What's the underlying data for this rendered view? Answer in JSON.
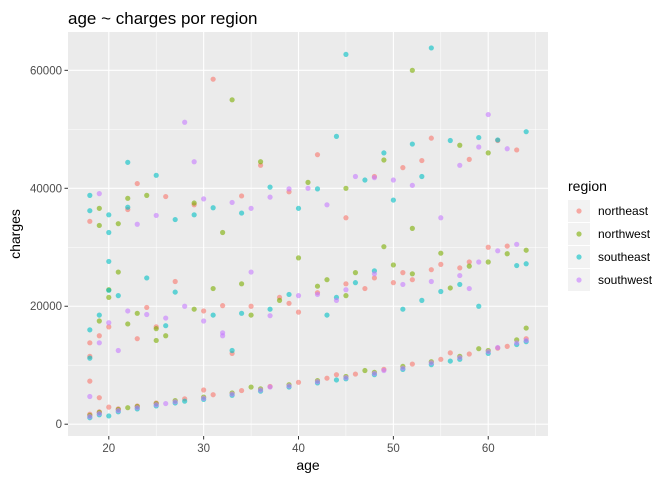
{
  "chart_data": {
    "type": "scatter",
    "title": "age ~ charges por region",
    "xlabel": "age",
    "ylabel": "charges",
    "xlim": [
      15.7,
      66.3
    ],
    "ylim": [
      -2000,
      66500
    ],
    "xticks": [
      20,
      30,
      40,
      50,
      60
    ],
    "yticks": [
      0,
      20000,
      40000,
      60000
    ],
    "grid": true,
    "legend": {
      "title": "region",
      "position": "right"
    },
    "point_alpha": 0.6,
    "series": [
      {
        "name": "northeast",
        "color": "#F8766D",
        "points": [
          [
            18,
            1700
          ],
          [
            19,
            2100
          ],
          [
            21,
            2600
          ],
          [
            23,
            3100
          ],
          [
            25,
            3600
          ],
          [
            28,
            4300
          ],
          [
            31,
            5000
          ],
          [
            34,
            5700
          ],
          [
            37,
            6400
          ],
          [
            40,
            7100
          ],
          [
            43,
            7800
          ],
          [
            46,
            8500
          ],
          [
            49,
            9300
          ],
          [
            52,
            10200
          ],
          [
            55,
            11000
          ],
          [
            58,
            11900
          ],
          [
            61,
            12900
          ],
          [
            64,
            14500
          ],
          [
            18,
            7300
          ],
          [
            19,
            4500
          ],
          [
            20,
            2900
          ],
          [
            30,
            5800
          ],
          [
            44,
            8400
          ],
          [
            56,
            12100
          ],
          [
            62,
            13200
          ],
          [
            18,
            11500
          ],
          [
            18,
            13800
          ],
          [
            20,
            16500
          ],
          [
            24,
            19800
          ],
          [
            27,
            24200
          ],
          [
            30,
            19200
          ],
          [
            32,
            20100
          ],
          [
            38,
            21500
          ],
          [
            42,
            22300
          ],
          [
            45,
            23800
          ],
          [
            48,
            24800
          ],
          [
            51,
            25700
          ],
          [
            55,
            27100
          ],
          [
            58,
            27500
          ],
          [
            60,
            30000
          ],
          [
            62,
            30200
          ],
          [
            23,
            14500
          ],
          [
            33,
            12000
          ],
          [
            39,
            20500
          ],
          [
            47,
            23000
          ],
          [
            52,
            24500
          ],
          [
            57,
            26500
          ],
          [
            18,
            34400
          ],
          [
            22,
            36400
          ],
          [
            23,
            40800
          ],
          [
            26,
            38600
          ],
          [
            29,
            37200
          ],
          [
            31,
            58500
          ],
          [
            34,
            38700
          ],
          [
            36,
            43900
          ],
          [
            39,
            39400
          ],
          [
            42,
            45700
          ],
          [
            45,
            35000
          ],
          [
            48,
            42000
          ],
          [
            51,
            43500
          ],
          [
            53,
            44700
          ],
          [
            54,
            48500
          ],
          [
            58,
            44900
          ],
          [
            61,
            48100
          ],
          [
            63,
            46500
          ],
          [
            19,
            15000
          ],
          [
            25,
            16500
          ],
          [
            35,
            20000
          ],
          [
            40,
            19000
          ],
          [
            50,
            24000
          ],
          [
            54,
            26200
          ]
        ]
      },
      {
        "name": "northwest",
        "color": "#7CAE00",
        "points": [
          [
            18,
            1500
          ],
          [
            19,
            2000
          ],
          [
            21,
            2500
          ],
          [
            23,
            3000
          ],
          [
            25,
            3500
          ],
          [
            27,
            4000
          ],
          [
            30,
            4600
          ],
          [
            33,
            5300
          ],
          [
            36,
            6000
          ],
          [
            39,
            6700
          ],
          [
            42,
            7400
          ],
          [
            45,
            8100
          ],
          [
            48,
            8800
          ],
          [
            51,
            9800
          ],
          [
            54,
            10600
          ],
          [
            57,
            11500
          ],
          [
            60,
            12500
          ],
          [
            63,
            14300
          ],
          [
            64,
            16300
          ],
          [
            22,
            2800
          ],
          [
            35,
            6300
          ],
          [
            47,
            9100
          ],
          [
            59,
            12800
          ],
          [
            19,
            17500
          ],
          [
            20,
            21500
          ],
          [
            20,
            22800
          ],
          [
            21,
            25800
          ],
          [
            22,
            17000
          ],
          [
            23,
            18800
          ],
          [
            25,
            16200
          ],
          [
            26,
            15000
          ],
          [
            29,
            19500
          ],
          [
            31,
            23000
          ],
          [
            34,
            23800
          ],
          [
            35,
            18500
          ],
          [
            38,
            21000
          ],
          [
            40,
            28200
          ],
          [
            42,
            23400
          ],
          [
            43,
            24500
          ],
          [
            46,
            25700
          ],
          [
            49,
            30100
          ],
          [
            50,
            27000
          ],
          [
            52,
            25500
          ],
          [
            55,
            29000
          ],
          [
            58,
            26800
          ],
          [
            60,
            27500
          ],
          [
            62,
            28900
          ],
          [
            64,
            29500
          ],
          [
            19,
            36600
          ],
          [
            19,
            33700
          ],
          [
            21,
            34000
          ],
          [
            22,
            38300
          ],
          [
            24,
            38800
          ],
          [
            29,
            37500
          ],
          [
            32,
            32500
          ],
          [
            33,
            55000
          ],
          [
            36,
            44500
          ],
          [
            41,
            41000
          ],
          [
            45,
            40000
          ],
          [
            49,
            44800
          ],
          [
            52,
            33200
          ],
          [
            52,
            60000
          ],
          [
            57,
            47300
          ],
          [
            60,
            46000
          ],
          [
            25,
            14200
          ],
          [
            45,
            21800
          ],
          [
            56,
            23100
          ]
        ]
      },
      {
        "name": "southeast",
        "color": "#00BFC4",
        "points": [
          [
            18,
            1100
          ],
          [
            19,
            1600
          ],
          [
            21,
            2100
          ],
          [
            23,
            2600
          ],
          [
            25,
            3100
          ],
          [
            27,
            3600
          ],
          [
            30,
            4200
          ],
          [
            33,
            4900
          ],
          [
            36,
            5600
          ],
          [
            39,
            6300
          ],
          [
            42,
            7000
          ],
          [
            45,
            7700
          ],
          [
            48,
            8400
          ],
          [
            51,
            9300
          ],
          [
            54,
            10100
          ],
          [
            57,
            11000
          ],
          [
            60,
            12000
          ],
          [
            63,
            13500
          ],
          [
            64,
            14000
          ],
          [
            20,
            1400
          ],
          [
            28,
            3900
          ],
          [
            44,
            7500
          ],
          [
            56,
            10700
          ],
          [
            18,
            11200
          ],
          [
            18,
            16000
          ],
          [
            19,
            18500
          ],
          [
            20,
            22700
          ],
          [
            20,
            27600
          ],
          [
            21,
            21800
          ],
          [
            24,
            24800
          ],
          [
            27,
            22400
          ],
          [
            31,
            18500
          ],
          [
            34,
            18800
          ],
          [
            37,
            19500
          ],
          [
            39,
            22000
          ],
          [
            44,
            21500
          ],
          [
            46,
            24000
          ],
          [
            48,
            26000
          ],
          [
            51,
            19500
          ],
          [
            53,
            21000
          ],
          [
            55,
            22500
          ],
          [
            59,
            20000
          ],
          [
            63,
            26900
          ],
          [
            64,
            27200
          ],
          [
            18,
            36200
          ],
          [
            18,
            38800
          ],
          [
            20,
            32500
          ],
          [
            20,
            35500
          ],
          [
            22,
            36800
          ],
          [
            22,
            44400
          ],
          [
            25,
            42200
          ],
          [
            27,
            34700
          ],
          [
            29,
            35500
          ],
          [
            31,
            36700
          ],
          [
            34,
            35800
          ],
          [
            37,
            40200
          ],
          [
            40,
            36600
          ],
          [
            42,
            39900
          ],
          [
            44,
            48800
          ],
          [
            45,
            62700
          ],
          [
            47,
            41400
          ],
          [
            49,
            46000
          ],
          [
            50,
            38000
          ],
          [
            52,
            47500
          ],
          [
            53,
            42000
          ],
          [
            54,
            63800
          ],
          [
            56,
            48100
          ],
          [
            59,
            48600
          ],
          [
            61,
            48200
          ],
          [
            64,
            49600
          ],
          [
            26,
            16700
          ],
          [
            33,
            12500
          ],
          [
            43,
            18500
          ],
          [
            57,
            23700
          ]
        ]
      },
      {
        "name": "southwest",
        "color": "#C77CFF",
        "points": [
          [
            18,
            1300
          ],
          [
            19,
            1800
          ],
          [
            21,
            2300
          ],
          [
            23,
            2800
          ],
          [
            25,
            3300
          ],
          [
            27,
            3800
          ],
          [
            30,
            4400
          ],
          [
            33,
            5100
          ],
          [
            36,
            5800
          ],
          [
            39,
            6500
          ],
          [
            42,
            7200
          ],
          [
            45,
            7900
          ],
          [
            48,
            8600
          ],
          [
            51,
            9500
          ],
          [
            54,
            10400
          ],
          [
            57,
            11300
          ],
          [
            60,
            12300
          ],
          [
            63,
            13800
          ],
          [
            64,
            14200
          ],
          [
            26,
            3500
          ],
          [
            37,
            6300
          ],
          [
            49,
            9100
          ],
          [
            61,
            13000
          ],
          [
            18,
            4700
          ],
          [
            19,
            13800
          ],
          [
            20,
            17200
          ],
          [
            22,
            19200
          ],
          [
            24,
            18600
          ],
          [
            26,
            18000
          ],
          [
            28,
            20000
          ],
          [
            30,
            17500
          ],
          [
            32,
            15500
          ],
          [
            35,
            25800
          ],
          [
            37,
            18400
          ],
          [
            40,
            21800
          ],
          [
            42,
            22000
          ],
          [
            45,
            22800
          ],
          [
            48,
            25500
          ],
          [
            51,
            23700
          ],
          [
            54,
            24200
          ],
          [
            57,
            25200
          ],
          [
            59,
            27500
          ],
          [
            61,
            29400
          ],
          [
            63,
            30500
          ],
          [
            19,
            39100
          ],
          [
            23,
            33900
          ],
          [
            25,
            35400
          ],
          [
            28,
            51200
          ],
          [
            29,
            44500
          ],
          [
            30,
            38200
          ],
          [
            33,
            37600
          ],
          [
            35,
            36600
          ],
          [
            37,
            38500
          ],
          [
            39,
            39900
          ],
          [
            41,
            40000
          ],
          [
            43,
            37200
          ],
          [
            46,
            42000
          ],
          [
            48,
            41800
          ],
          [
            50,
            41400
          ],
          [
            52,
            40500
          ],
          [
            55,
            35000
          ],
          [
            57,
            43900
          ],
          [
            59,
            47000
          ],
          [
            60,
            52500
          ],
          [
            62,
            46700
          ],
          [
            21,
            12500
          ],
          [
            32,
            15000
          ],
          [
            44,
            21000
          ],
          [
            58,
            23000
          ]
        ]
      }
    ]
  }
}
